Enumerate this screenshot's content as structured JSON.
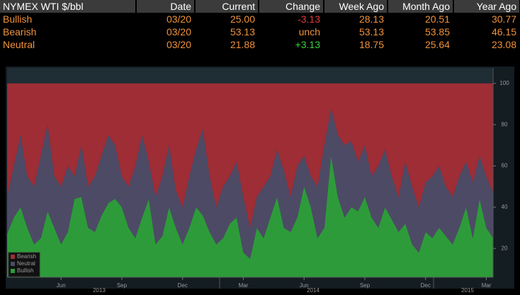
{
  "table": {
    "header": [
      "NYMEX WTI $/bbl",
      "Date",
      "Current",
      "Change",
      "Week Ago",
      "Month Ago",
      "Year Ago"
    ],
    "rows": [
      [
        "Bullish",
        "03/20",
        "25.00",
        "-3.13",
        "28.13",
        "20.51",
        "30.77"
      ],
      [
        "Bearish",
        "03/20",
        "53.13",
        "unch",
        "53.13",
        "53.85",
        "46.15"
      ],
      [
        "Neutral",
        "03/20",
        "21.88",
        "+3.13",
        "18.75",
        "25.64",
        "23.08"
      ]
    ]
  },
  "chart_data": {
    "type": "stacked_area",
    "categories": [
      null,
      null,
      null,
      null,
      null,
      null,
      null,
      null,
      "Jun",
      null,
      null,
      null,
      null,
      null,
      null,
      null,
      null,
      "Sep",
      null,
      null,
      null,
      null,
      null,
      null,
      null,
      null,
      "Dec",
      null,
      null,
      null,
      null,
      null,
      null,
      null,
      null,
      "Mar",
      null,
      null,
      null,
      null,
      null,
      null,
      null,
      null,
      "Jun",
      null,
      null,
      null,
      null,
      null,
      null,
      null,
      null,
      "Sep",
      null,
      null,
      null,
      null,
      null,
      null,
      null,
      null,
      "Dec",
      null,
      null,
      null,
      null,
      null,
      null,
      null,
      null,
      "Mar",
      null
    ],
    "years": [
      "2013",
      "2014",
      "2015"
    ],
    "series": [
      {
        "name": "Bullish",
        "color": "#2e9b3a",
        "values": [
          27,
          35,
          40,
          30,
          22,
          25,
          38,
          30,
          22,
          28,
          44,
          45,
          30,
          28,
          36,
          42,
          44,
          40,
          30,
          25,
          35,
          44,
          22,
          26,
          40,
          30,
          22,
          30,
          40,
          36,
          28,
          22,
          25,
          32,
          35,
          18,
          15,
          30,
          25,
          35,
          45,
          30,
          28,
          35,
          50,
          40,
          25,
          30,
          65,
          45,
          35,
          40,
          38,
          45,
          35,
          30,
          40,
          34,
          28,
          32,
          22,
          18,
          28,
          25,
          30,
          26,
          22,
          30,
          40,
          25,
          44,
          30,
          25
        ]
      },
      {
        "name": "Neutral",
        "color": "#4d4a66",
        "values": [
          18,
          25,
          35,
          25,
          28,
          40,
          42,
          25,
          28,
          32,
          11,
          25,
          20,
          27,
          29,
          33,
          26,
          15,
          20,
          35,
          40,
          18,
          23,
          29,
          30,
          18,
          18,
          25,
          28,
          42,
          27,
          18,
          25,
          23,
          27,
          27,
          15,
          15,
          25,
          20,
          23,
          28,
          17,
          25,
          15,
          15,
          25,
          40,
          23,
          30,
          35,
          32,
          24,
          25,
          20,
          30,
          28,
          21,
          17,
          30,
          28,
          22,
          24,
          30,
          30,
          24,
          23,
          25,
          22,
          27,
          21,
          25,
          21.88
        ]
      },
      {
        "name": "Bearish",
        "color": "#9f2d36",
        "values": [
          55,
          40,
          25,
          45,
          50,
          35,
          20,
          45,
          50,
          40,
          45,
          30,
          50,
          45,
          35,
          25,
          30,
          45,
          50,
          40,
          25,
          38,
          55,
          45,
          30,
          52,
          60,
          45,
          32,
          22,
          45,
          60,
          50,
          45,
          38,
          55,
          70,
          55,
          50,
          45,
          32,
          42,
          55,
          40,
          35,
          45,
          50,
          30,
          12,
          25,
          30,
          28,
          38,
          30,
          45,
          40,
          32,
          45,
          55,
          38,
          50,
          60,
          48,
          45,
          40,
          50,
          55,
          45,
          38,
          48,
          35,
          45,
          53.13
        ]
      }
    ],
    "ylim": [
      6,
      107.5
    ],
    "yticks": [
      20,
      40,
      60,
      80,
      100
    ]
  }
}
